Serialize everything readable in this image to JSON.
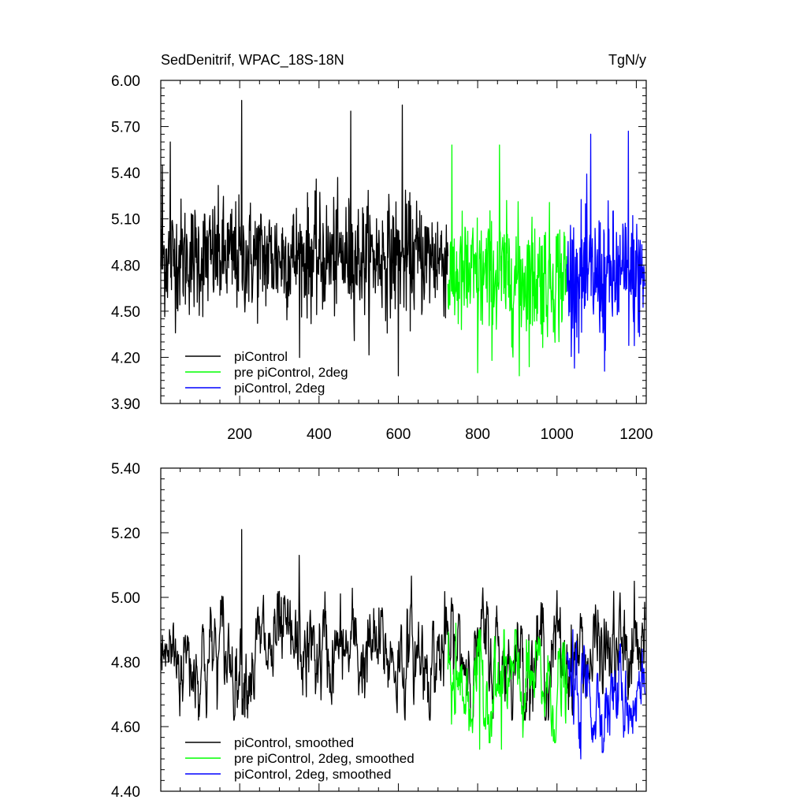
{
  "chart_data": [
    {
      "type": "line",
      "title": "SedDenitrif, WPAC_18S-18N",
      "units": "TgN/y",
      "xlim": [
        1,
        1225
      ],
      "ylim": [
        3.9,
        6.0
      ],
      "xticks": [
        200,
        400,
        600,
        800,
        1000,
        1200
      ],
      "xtick_labels": [
        "200",
        "400",
        "600",
        "800",
        "1000",
        "1200"
      ],
      "yticks": [
        3.9,
        4.2,
        4.5,
        4.8,
        5.1,
        5.4,
        5.7,
        6.0
      ],
      "ytick_labels": [
        "3.90",
        "4.20",
        "4.50",
        "4.80",
        "5.10",
        "5.40",
        "5.70",
        "6.00"
      ],
      "grid": false,
      "legend_position": "bottom-left",
      "series": [
        {
          "name": "piControl",
          "color": "#000000",
          "x_range": [
            1,
            725
          ],
          "mean": 4.85,
          "spread": 0.22,
          "min": 4.08,
          "max": 5.87,
          "notable_points": [
            [
              5,
              5.45
            ],
            [
              25,
              5.6
            ],
            [
              205,
              5.87
            ],
            [
              480,
              5.8
            ],
            [
              600,
              4.08
            ],
            [
              610,
              5.84
            ]
          ]
        },
        {
          "name": "pre piControl, 2deg",
          "color": "#00ff00",
          "x_range": [
            725,
            1025
          ],
          "mean": 4.72,
          "spread": 0.24,
          "min": 4.08,
          "max": 5.58,
          "notable_points": [
            [
              735,
              5.58
            ],
            [
              800,
              4.1
            ],
            [
              855,
              5.58
            ],
            [
              905,
              4.08
            ]
          ]
        },
        {
          "name": "piControl, 2deg",
          "color": "#0000ff",
          "x_range": [
            1025,
            1222
          ],
          "mean": 4.72,
          "spread": 0.25,
          "min": 4.11,
          "max": 5.67,
          "notable_points": [
            [
              1085,
              5.65
            ],
            [
              1180,
              5.67
            ],
            [
              1120,
              4.11
            ]
          ]
        }
      ]
    },
    {
      "type": "line",
      "xlim": [
        1,
        1225
      ],
      "ylim": [
        4.4,
        5.4
      ],
      "xticks": [
        200,
        400,
        600,
        800,
        1000,
        1200
      ],
      "yticks": [
        4.4,
        4.6,
        4.8,
        5.0,
        5.2,
        5.4
      ],
      "ytick_labels": [
        "4.40",
        "4.60",
        "4.80",
        "5.00",
        "5.20",
        "5.40"
      ],
      "grid": false,
      "legend_position": "bottom-left",
      "series": [
        {
          "name": "piControl, smoothed",
          "color": "#000000",
          "x_range": [
            1,
            1222
          ],
          "mean": 4.82,
          "spread": 0.09,
          "min": 4.6,
          "max": 5.21,
          "notable_points": [
            [
              205,
              5.21
            ],
            [
              305,
              5.0
            ],
            [
              350,
              5.13
            ],
            [
              1195,
              5.05
            ]
          ]
        },
        {
          "name": "pre piControl, 2deg, smoothed",
          "color": "#00ff00",
          "x_range": [
            725,
            1025
          ],
          "mean": 4.72,
          "spread": 0.08,
          "min": 4.53,
          "max": 4.92,
          "notable_points": [
            [
              745,
              4.92
            ],
            [
              805,
              4.53
            ],
            [
              860,
              4.53
            ]
          ]
        },
        {
          "name": "piControl, 2deg, smoothed",
          "color": "#0000ff",
          "x_range": [
            1025,
            1222
          ],
          "mean": 4.7,
          "spread": 0.08,
          "min": 4.5,
          "max": 4.9,
          "notable_points": [
            [
              1040,
              4.9
            ],
            [
              1060,
              4.5
            ],
            [
              1215,
              4.84
            ]
          ]
        }
      ]
    }
  ]
}
